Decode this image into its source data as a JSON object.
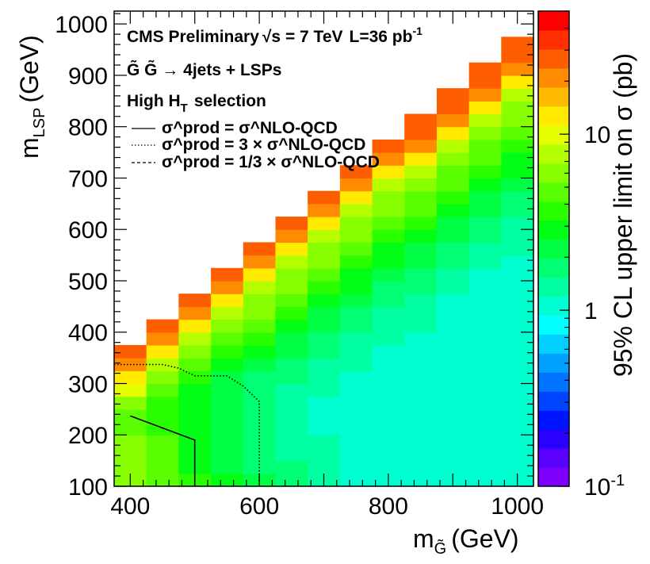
{
  "chart_data": {
    "type": "heatmap",
    "x_title_main": "m",
    "x_title_sub": "G̃",
    "x_title_unit": "(GeV)",
    "y_title_main": "m",
    "y_title_sub": "LSP",
    "y_title_unit": "(GeV)",
    "z_title": "95% CL upper limit on σ (pb)",
    "z_scale": "log",
    "z_range": [
      0.1,
      50
    ],
    "xlim": [
      375,
      1025
    ],
    "ylim": [
      100,
      1025
    ],
    "x_ticks": [
      400,
      600,
      800,
      1000
    ],
    "y_ticks": [
      100,
      200,
      300,
      400,
      500,
      600,
      700,
      800,
      900,
      1000
    ],
    "z_tick_labels": [
      {
        "value": 0.1,
        "base": "10",
        "exp": "-1"
      },
      {
        "value": 1,
        "base": "1",
        "exp": ""
      },
      {
        "value": 10,
        "base": "10",
        "exp": ""
      }
    ],
    "grid": false,
    "legend_position": "top-left",
    "annotations": {
      "experiment": "CMS Preliminary",
      "energy": "√s = 7 TeV",
      "lumi_prefix": "L=36 pb",
      "lumi_exp": "-1",
      "process": "G̃ G̃ → 4jets + LSPs",
      "selection_prefix": "High H",
      "selection_sub": "T",
      "selection_suffix": "selection"
    },
    "legend": [
      {
        "style": "solid",
        "text": "σ^prod = σ^NLO-QCD"
      },
      {
        "style": "dotted",
        "text": "σ^prod = 3 × σ^NLO-QCD"
      },
      {
        "style": "dashed",
        "text": "σ^prod = 1/3 × σ^NLO-QCD"
      }
    ],
    "palette": [
      "#7f00ff",
      "#5900ff",
      "#2a00ff",
      "#0015ff",
      "#0044ff",
      "#0073ff",
      "#00a1ff",
      "#00cfff",
      "#00ffff",
      "#00ffd0",
      "#00ffa2",
      "#00ff73",
      "#00ff44",
      "#00ff15",
      "#2aff00",
      "#59ff00",
      "#87ff00",
      "#b6ff00",
      "#e4ff00",
      "#ffea00",
      "#ffbb00",
      "#ff8c00",
      "#ff5e00",
      "#ff2f00",
      "#ff0000"
    ],
    "grid_x": [
      400,
      450,
      500,
      550,
      600,
      650,
      700,
      750,
      800,
      850,
      900,
      950,
      1000
    ],
    "grid_y_start": 100,
    "grid_y_step": 25,
    "cell_width": 50,
    "cell_height": 25,
    "column_heights": [
      11,
      13,
      15,
      17,
      19,
      21,
      23,
      25,
      27,
      29,
      31,
      33,
      35
    ],
    "column_tops": [
      375,
      425,
      475,
      525,
      575,
      625,
      675,
      725,
      775,
      825,
      875,
      925,
      975
    ],
    "limit_values_pb": [
      [
        6.2,
        6.8,
        6.5,
        5.8,
        5.0,
        4.5,
        6.5,
        9.0,
        12.5,
        20.0,
        28.0
      ],
      [
        4.5,
        4.2,
        4.5,
        4.2,
        3.8,
        3.8,
        4.0,
        4.5,
        5.5,
        8.5,
        12.5,
        20.0,
        28.0
      ],
      [
        3.5,
        3.0,
        3.1,
        3.0,
        2.8,
        2.6,
        2.6,
        2.8,
        3.8,
        5.0,
        6.2,
        8.5,
        12.5,
        20.0,
        28.0
      ],
      [
        2.8,
        2.4,
        2.4,
        2.2,
        2.1,
        2.2,
        2.2,
        2.2,
        2.4,
        2.8,
        3.4,
        4.5,
        6.2,
        8.5,
        12.5,
        20.0,
        28.0
      ],
      [
        2.2,
        1.9,
        1.8,
        1.7,
        1.6,
        1.6,
        1.7,
        1.8,
        1.9,
        2.2,
        2.8,
        3.4,
        4.5,
        5.5,
        6.8,
        8.5,
        12.5,
        20.0,
        28.0
      ],
      [
        1.7,
        1.6,
        1.5,
        1.35,
        1.3,
        1.3,
        1.3,
        1.4,
        1.6,
        1.7,
        2.0,
        2.3,
        2.8,
        3.4,
        4.5,
        5.5,
        6.8,
        8.5,
        12.5,
        20.0,
        28.0
      ],
      [
        1.35,
        1.3,
        1.3,
        1.25,
        1.2,
        1.2,
        1.2,
        1.3,
        1.3,
        1.4,
        1.6,
        1.8,
        2.1,
        2.5,
        3.0,
        3.7,
        4.5,
        5.5,
        6.8,
        8.5,
        12.5,
        20.0,
        28.0
      ],
      [
        1.2,
        1.15,
        1.2,
        1.1,
        1.1,
        1.2,
        1.2,
        1.2,
        1.2,
        1.3,
        1.3,
        1.4,
        1.6,
        1.9,
        2.2,
        2.6,
        3.0,
        3.7,
        4.5,
        5.5,
        6.8,
        8.5,
        12.5,
        20.0,
        28.0
      ],
      [
        1.2,
        1.15,
        1.2,
        1.1,
        1.1,
        1.1,
        1.0,
        1.1,
        1.1,
        1.2,
        1.2,
        1.3,
        1.3,
        1.4,
        1.6,
        1.9,
        2.2,
        2.6,
        3.0,
        3.7,
        4.5,
        5.5,
        6.8,
        8.5,
        12.5,
        20.0,
        28.0
      ],
      [
        1.0,
        1.0,
        1.0,
        1.0,
        1.0,
        1.0,
        1.0,
        1.0,
        1.0,
        1.0,
        1.1,
        1.2,
        1.3,
        1.3,
        1.4,
        1.6,
        1.8,
        2.1,
        2.4,
        2.8,
        3.4,
        4.2,
        5.2,
        6.8,
        8.5,
        12.5,
        20.0,
        28.0,
        28.0
      ],
      [
        1.0,
        1.0,
        1.0,
        1.0,
        1.0,
        1.0,
        1.0,
        1.0,
        1.0,
        1.0,
        1.0,
        1.0,
        1.0,
        1.1,
        1.2,
        1.3,
        1.4,
        1.6,
        1.8,
        2.1,
        2.4,
        2.8,
        3.4,
        4.2,
        5.2,
        6.8,
        8.5,
        12.5,
        20.0,
        28.0,
        28.0
      ],
      [
        1.0,
        1.0,
        1.0,
        1.0,
        1.0,
        1.0,
        1.0,
        1.0,
        1.0,
        1.0,
        1.0,
        1.0,
        1.0,
        1.0,
        1.1,
        1.1,
        1.2,
        1.3,
        1.4,
        1.6,
        1.8,
        2.1,
        2.4,
        2.8,
        3.4,
        4.2,
        5.2,
        6.8,
        8.5,
        12.5,
        20.0,
        28.0,
        28.0
      ],
      [
        1.0,
        1.0,
        1.0,
        1.0,
        1.0,
        1.0,
        1.0,
        1.0,
        1.0,
        1.0,
        1.0,
        1.0,
        1.0,
        1.0,
        1.0,
        1.0,
        1.1,
        1.2,
        1.3,
        1.4,
        1.5,
        1.7,
        1.9,
        2.2,
        2.6,
        3.0,
        3.6,
        4.4,
        5.4,
        6.8,
        8.5,
        12.5,
        20.0,
        28.0,
        28.0
      ]
    ],
    "contours": [
      {
        "style": "solid",
        "points": [
          [
            400,
            237
          ],
          [
            500,
            190
          ],
          [
            500,
            100
          ]
        ]
      },
      {
        "style": "dotted",
        "points": [
          [
            375,
            337
          ],
          [
            450,
            337
          ],
          [
            475,
            330
          ],
          [
            500,
            315
          ],
          [
            550,
            315
          ],
          [
            575,
            295
          ],
          [
            600,
            265
          ],
          [
            600,
            100
          ]
        ]
      },
      {
        "style": "dashed",
        "points": []
      }
    ]
  }
}
